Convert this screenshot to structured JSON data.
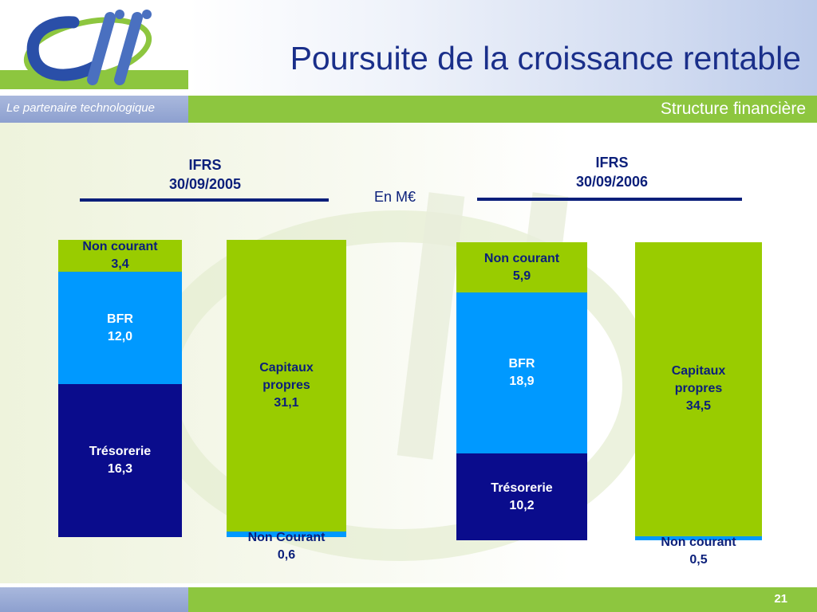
{
  "header": {
    "title": "Poursuite de la croissance rentable",
    "tagline": "Le partenaire technologique",
    "section": "Structure financière"
  },
  "footer": {
    "page_number": "21"
  },
  "colors": {
    "dark_blue": "#0a0c8c",
    "light_blue": "#0099ff",
    "green": "#99cc00",
    "title_blue": "#1a2f8a",
    "bar_green": "#8dc63f"
  },
  "chart_data": [
    {
      "type": "bar",
      "stacked": true,
      "unit_label": "En M€",
      "heading": [
        "IFRS",
        "30/09/2005"
      ],
      "columns": [
        {
          "segments": [
            {
              "label": "Trésorerie",
              "value": 16.3,
              "value_text": "16,3",
              "color": "#0a0c8c",
              "text_color": "#ffffff"
            },
            {
              "label": "BFR",
              "value": 12.0,
              "value_text": "12,0",
              "color": "#0099ff",
              "text_color": "#ffffff"
            },
            {
              "label": "Non courant",
              "value": 3.4,
              "value_text": "3,4",
              "color": "#99cc00",
              "text_color": "#0b1f7a"
            }
          ]
        },
        {
          "segments": [
            {
              "label": "Non Courant",
              "value": 0.6,
              "value_text": "0,6",
              "color": "#0099ff",
              "text_color": "#0b1f7a"
            },
            {
              "label": "Capitaux propres",
              "value": 31.1,
              "value_text": "31,1",
              "color": "#99cc00",
              "text_color": "#0b1f7a"
            }
          ]
        }
      ]
    },
    {
      "type": "bar",
      "stacked": true,
      "heading": [
        "IFRS",
        "30/09/2006"
      ],
      "columns": [
        {
          "segments": [
            {
              "label": "Trésorerie",
              "value": 10.2,
              "value_text": "10,2",
              "color": "#0a0c8c",
              "text_color": "#ffffff"
            },
            {
              "label": "BFR",
              "value": 18.9,
              "value_text": "18,9",
              "color": "#0099ff",
              "text_color": "#ffffff"
            },
            {
              "label": "Non courant",
              "value": 5.9,
              "value_text": "5,9",
              "color": "#99cc00",
              "text_color": "#0b1f7a"
            }
          ]
        },
        {
          "segments": [
            {
              "label": "Non courant",
              "value": 0.5,
              "value_text": "0,5",
              "color": "#0099ff",
              "text_color": "#0b1f7a"
            },
            {
              "label": "Capitaux propres",
              "value": 34.5,
              "value_text": "34,5",
              "color": "#99cc00",
              "text_color": "#0b1f7a"
            }
          ]
        }
      ]
    }
  ]
}
